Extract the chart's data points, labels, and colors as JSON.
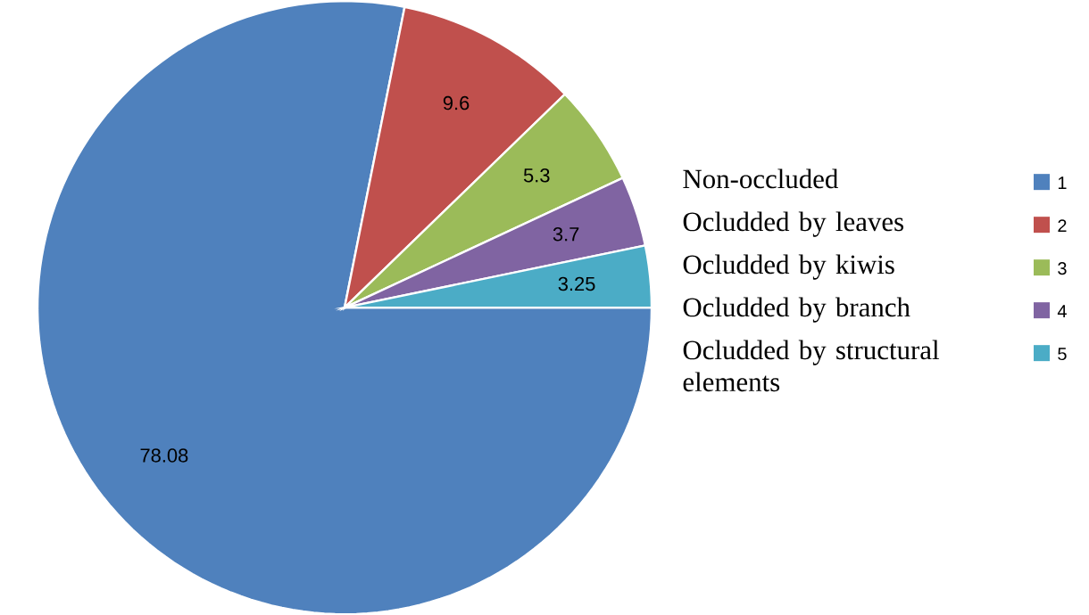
{
  "chart_data": {
    "type": "pie",
    "categories": [
      "1",
      "2",
      "3",
      "4",
      "5"
    ],
    "values": [
      78.08,
      9.6,
      5.3,
      3.7,
      3.25
    ],
    "colors": [
      "#4f81bd",
      "#c0504d",
      "#9bbb59",
      "#8064a2",
      "#4bacc6"
    ],
    "data_labels": true,
    "legend": "right",
    "annotations": [
      "Non-occluded",
      "Ocludded by leaves",
      "Ocludded by kiwis",
      "Ocludded by branch",
      "Ocludded by structural elements"
    ]
  }
}
